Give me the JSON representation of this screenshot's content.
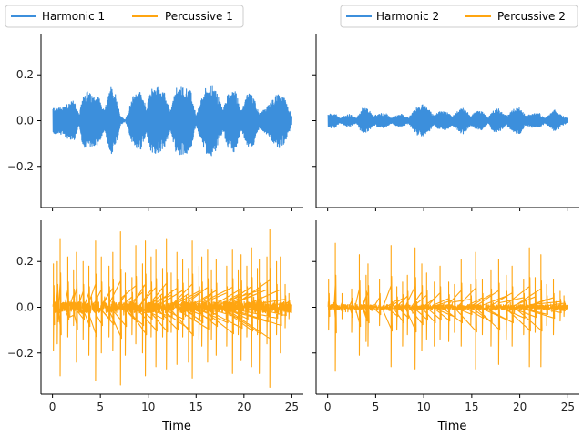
{
  "chart_data": [
    {
      "type": "line",
      "panel": "top-left",
      "series": [
        {
          "name": "Harmonic 1",
          "color": "#3c8fdc",
          "signal": "harmonic",
          "envelope": [
            [
              0.1,
              0.06
            ],
            [
              1.0,
              0.06
            ],
            [
              1.6,
              0.08
            ],
            [
              2.3,
              0.09
            ],
            [
              2.8,
              0.02
            ],
            [
              3.2,
              0.12
            ],
            [
              3.6,
              0.13
            ],
            [
              4.2,
              0.11
            ],
            [
              4.8,
              0.11
            ],
            [
              5.4,
              0.04
            ],
            [
              6.1,
              0.15
            ],
            [
              6.6,
              0.12
            ],
            [
              7.1,
              0.02
            ],
            [
              7.6,
              0.0
            ],
            [
              8.5,
              0.12
            ],
            [
              9.3,
              0.13
            ],
            [
              9.8,
              0.05
            ],
            [
              10.3,
              0.14
            ],
            [
              11.0,
              0.15
            ],
            [
              11.7,
              0.12
            ],
            [
              12.3,
              0.04
            ],
            [
              12.9,
              0.14
            ],
            [
              13.5,
              0.15
            ],
            [
              14.4,
              0.14
            ],
            [
              15.0,
              0.02
            ],
            [
              15.9,
              0.14
            ],
            [
              16.6,
              0.16
            ],
            [
              17.2,
              0.12
            ],
            [
              17.8,
              0.05
            ],
            [
              18.4,
              0.13
            ],
            [
              19.1,
              0.14
            ],
            [
              19.7,
              0.04
            ],
            [
              20.4,
              0.12
            ],
            [
              21.0,
              0.11
            ],
            [
              21.6,
              0.03
            ],
            [
              22.4,
              0.06
            ],
            [
              23.1,
              0.1
            ],
            [
              23.6,
              0.12
            ],
            [
              24.2,
              0.1
            ],
            [
              25.0,
              0.02
            ]
          ]
        }
      ],
      "ylim": [
        -0.38,
        0.38
      ],
      "xlim": [
        -1.2,
        26.2
      ],
      "yticks": [
        "0.2",
        "0.0",
        "−0.2"
      ],
      "ytick_values": [
        0.2,
        0.0,
        -0.2
      ],
      "xticks": [
        0,
        5,
        10,
        15,
        20,
        25
      ],
      "legend": "above-left"
    },
    {
      "type": "line",
      "panel": "top-right",
      "series": [
        {
          "name": "Harmonic 2",
          "color": "#3c8fdc",
          "signal": "harmonic",
          "envelope": [
            [
              0.1,
              0.03
            ],
            [
              0.8,
              0.03
            ],
            [
              1.3,
              0.01
            ],
            [
              2.2,
              0.03
            ],
            [
              3.0,
              0.01
            ],
            [
              3.6,
              0.06
            ],
            [
              4.2,
              0.05
            ],
            [
              4.8,
              0.02
            ],
            [
              5.4,
              0.03
            ],
            [
              6.1,
              0.03
            ],
            [
              6.6,
              0.01
            ],
            [
              7.6,
              0.03
            ],
            [
              8.4,
              0.01
            ],
            [
              9.2,
              0.06
            ],
            [
              9.9,
              0.07
            ],
            [
              10.5,
              0.05
            ],
            [
              11.1,
              0.02
            ],
            [
              11.6,
              0.04
            ],
            [
              12.3,
              0.04
            ],
            [
              13.0,
              0.02
            ],
            [
              13.7,
              0.05
            ],
            [
              14.2,
              0.06
            ],
            [
              14.9,
              0.02
            ],
            [
              15.5,
              0.04
            ],
            [
              16.1,
              0.04
            ],
            [
              16.7,
              0.01
            ],
            [
              17.2,
              0.05
            ],
            [
              17.8,
              0.05
            ],
            [
              18.6,
              0.02
            ],
            [
              19.3,
              0.05
            ],
            [
              20.0,
              0.06
            ],
            [
              20.6,
              0.02
            ],
            [
              21.3,
              0.03
            ],
            [
              22.1,
              0.03
            ],
            [
              22.6,
              0.01
            ],
            [
              23.2,
              0.03
            ],
            [
              23.7,
              0.05
            ],
            [
              24.4,
              0.02
            ],
            [
              25.0,
              0.01
            ]
          ]
        }
      ],
      "ylim": [
        -0.38,
        0.38
      ],
      "xlim": [
        -1.2,
        26.2
      ],
      "xticks": [
        0,
        5,
        10,
        15,
        20,
        25
      ],
      "legend": "above-right"
    },
    {
      "type": "line",
      "panel": "bottom-left",
      "series": [
        {
          "name": "Percussive 1",
          "color": "#ffa510",
          "signal": "percussive",
          "noise": 0.025,
          "spikes": [
            [
              0.1,
              0.19,
              -0.19
            ],
            [
              0.5,
              0.2,
              -0.16
            ],
            [
              0.8,
              0.3,
              -0.3
            ],
            [
              1.6,
              0.22,
              -0.13
            ],
            [
              2.2,
              0.16,
              -0.08
            ],
            [
              2.5,
              0.24,
              -0.24
            ],
            [
              3.2,
              0.2,
              -0.14
            ],
            [
              3.8,
              0.18,
              -0.21
            ],
            [
              4.5,
              0.29,
              -0.32
            ],
            [
              5.1,
              0.22,
              -0.2
            ],
            [
              5.9,
              0.18,
              -0.13
            ],
            [
              6.3,
              0.24,
              -0.19
            ],
            [
              7.1,
              0.33,
              -0.34
            ],
            [
              7.6,
              0.15,
              -0.21
            ],
            [
              8.3,
              0.13,
              -0.12
            ],
            [
              8.7,
              0.27,
              -0.16
            ],
            [
              9.4,
              0.19,
              -0.2
            ],
            [
              9.7,
              0.29,
              -0.3
            ],
            [
              10.3,
              0.22,
              -0.13
            ],
            [
              10.8,
              0.25,
              -0.26
            ],
            [
              11.5,
              0.17,
              -0.13
            ],
            [
              11.9,
              0.3,
              -0.27
            ],
            [
              12.4,
              0.15,
              -0.11
            ],
            [
              13.0,
              0.24,
              -0.25
            ],
            [
              13.6,
              0.21,
              -0.13
            ],
            [
              14.2,
              0.17,
              -0.24
            ],
            [
              14.6,
              0.29,
              -0.31
            ],
            [
              15.3,
              0.18,
              -0.14
            ],
            [
              15.6,
              0.22,
              -0.17
            ],
            [
              16.2,
              0.25,
              -0.24
            ],
            [
              16.6,
              0.16,
              -0.14
            ],
            [
              17.1,
              0.21,
              -0.21
            ],
            [
              18.2,
              0.18,
              -0.17
            ],
            [
              18.8,
              0.25,
              -0.29
            ],
            [
              19.4,
              0.16,
              -0.12
            ],
            [
              19.7,
              0.23,
              -0.23
            ],
            [
              20.3,
              0.18,
              -0.13
            ],
            [
              20.8,
              0.26,
              -0.26
            ],
            [
              21.4,
              0.17,
              -0.12
            ],
            [
              21.6,
              0.21,
              -0.29
            ],
            [
              22.4,
              0.22,
              -0.16
            ],
            [
              22.7,
              0.34,
              -0.35
            ],
            [
              23.4,
              0.2,
              -0.12
            ],
            [
              23.8,
              0.22,
              -0.2
            ],
            [
              24.3,
              0.1,
              -0.09
            ],
            [
              24.7,
              0.06,
              -0.05
            ]
          ]
        }
      ],
      "ylim": [
        -0.38,
        0.38
      ],
      "xlim": [
        -1.2,
        26.2
      ],
      "yticks": [
        "0.2",
        "0.0",
        "−0.2"
      ],
      "ytick_values": [
        0.2,
        0.0,
        -0.2
      ],
      "xticks": [
        0,
        5,
        10,
        15,
        20,
        25
      ],
      "xtick_labels": [
        "0",
        "5",
        "10",
        "15",
        "20",
        "25"
      ],
      "xlabel": "Time"
    },
    {
      "type": "line",
      "panel": "bottom-right",
      "series": [
        {
          "name": "Percussive 2",
          "color": "#ffa510",
          "signal": "percussive",
          "noise": 0.012,
          "spikes": [
            [
              0.1,
              0.12,
              -0.1
            ],
            [
              0.8,
              0.28,
              -0.28
            ],
            [
              1.5,
              0.06,
              -0.05
            ],
            [
              2.5,
              0.08,
              -0.11
            ],
            [
              3.3,
              0.23,
              -0.21
            ],
            [
              4.0,
              0.14,
              -0.15
            ],
            [
              4.2,
              0.19,
              -0.17
            ],
            [
              5.4,
              0.12,
              -0.08
            ],
            [
              6.6,
              0.27,
              -0.26
            ],
            [
              7.2,
              0.09,
              -0.1
            ],
            [
              7.8,
              0.11,
              -0.17
            ],
            [
              8.3,
              0.14,
              -0.12
            ],
            [
              9.1,
              0.26,
              -0.27
            ],
            [
              9.8,
              0.19,
              -0.19
            ],
            [
              10.3,
              0.15,
              -0.14
            ],
            [
              11.1,
              0.11,
              -0.17
            ],
            [
              11.7,
              0.18,
              -0.14
            ],
            [
              12.6,
              0.11,
              -0.15
            ],
            [
              13.2,
              0.1,
              -0.11
            ],
            [
              13.9,
              0.21,
              -0.17
            ],
            [
              14.9,
              0.1,
              -0.08
            ],
            [
              15.4,
              0.24,
              -0.27
            ],
            [
              16.1,
              0.12,
              -0.12
            ],
            [
              17.0,
              0.16,
              -0.17
            ],
            [
              17.8,
              0.21,
              -0.25
            ],
            [
              18.6,
              0.14,
              -0.14
            ],
            [
              19.2,
              0.18,
              -0.17
            ],
            [
              20.4,
              0.12,
              -0.12
            ],
            [
              21.0,
              0.26,
              -0.26
            ],
            [
              21.6,
              0.13,
              -0.11
            ],
            [
              22.2,
              0.23,
              -0.26
            ],
            [
              22.8,
              0.1,
              -0.08
            ],
            [
              23.5,
              0.12,
              -0.12
            ],
            [
              24.2,
              0.07,
              -0.06
            ],
            [
              24.6,
              0.05,
              -0.04
            ]
          ]
        }
      ],
      "ylim": [
        -0.38,
        0.38
      ],
      "xlim": [
        -1.2,
        26.2
      ],
      "xticks": [
        0,
        5,
        10,
        15,
        20,
        25
      ],
      "xtick_labels": [
        "0",
        "5",
        "10",
        "15",
        "20",
        "25"
      ],
      "xlabel": "Time"
    }
  ],
  "legends": {
    "left": [
      {
        "label": "Harmonic 1",
        "color": "#3c8fdc"
      },
      {
        "label": "Percussive 1",
        "color": "#ffa510"
      }
    ],
    "right": [
      {
        "label": "Harmonic 2",
        "color": "#3c8fdc"
      },
      {
        "label": "Percussive 2",
        "color": "#ffa510"
      }
    ]
  }
}
